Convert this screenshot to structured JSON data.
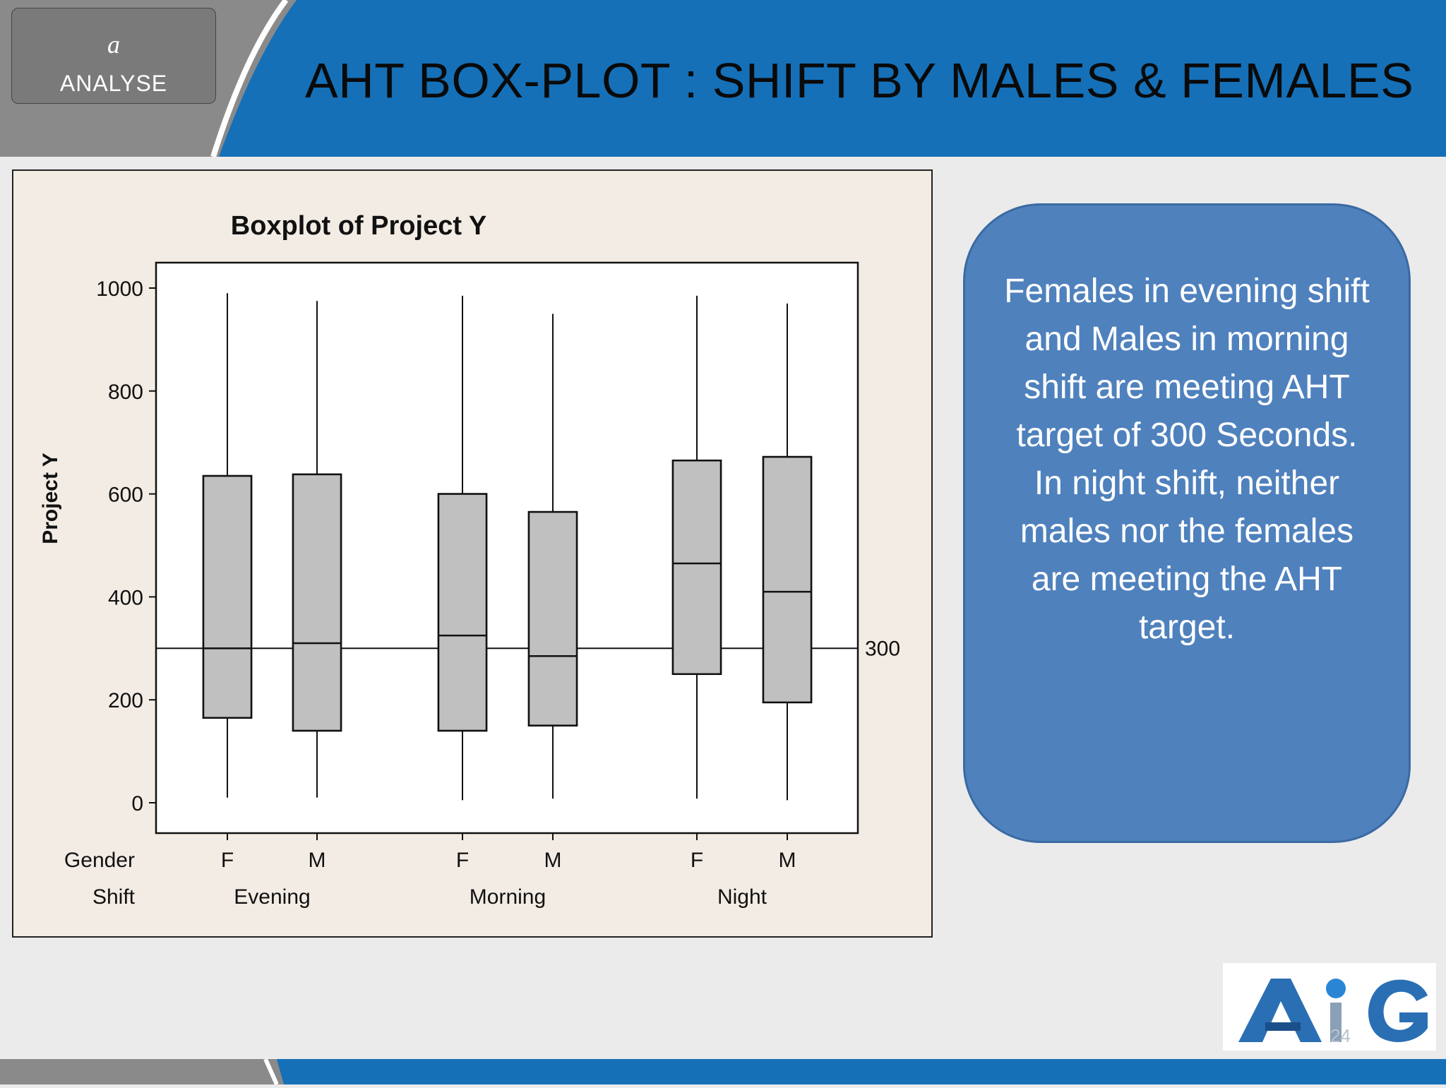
{
  "header": {
    "phase_letter": "a",
    "phase_label": "ANALYSE",
    "title": "AHT BOX-PLOT : SHIFT BY MALES & FEMALES"
  },
  "chart_data": {
    "type": "boxplot",
    "title": "Boxplot of Project Y",
    "ylabel": "Project Y",
    "ylim": [
      0,
      1000
    ],
    "yticks": [
      0,
      200,
      400,
      600,
      800,
      1000
    ],
    "grid": false,
    "reference_line": {
      "value": 300,
      "label": "300"
    },
    "row_labels": {
      "gender": "Gender",
      "shift": "Shift"
    },
    "groups": [
      {
        "shift": "Evening",
        "boxes": [
          {
            "gender": "F",
            "min": 10,
            "q1": 165,
            "median": 300,
            "q3": 635,
            "max": 990
          },
          {
            "gender": "M",
            "min": 10,
            "q1": 140,
            "median": 310,
            "q3": 638,
            "max": 975
          }
        ]
      },
      {
        "shift": "Morning",
        "boxes": [
          {
            "gender": "F",
            "min": 5,
            "q1": 140,
            "median": 325,
            "q3": 600,
            "max": 985
          },
          {
            "gender": "M",
            "min": 8,
            "q1": 150,
            "median": 285,
            "q3": 565,
            "max": 950
          }
        ]
      },
      {
        "shift": "Night",
        "boxes": [
          {
            "gender": "F",
            "min": 8,
            "q1": 250,
            "median": 465,
            "q3": 665,
            "max": 985
          },
          {
            "gender": "M",
            "min": 5,
            "q1": 195,
            "median": 410,
            "q3": 672,
            "max": 970
          }
        ]
      }
    ]
  },
  "callout": {
    "text": "Females in evening shift and Males in morning shift are meeting AHT target of 300 Seconds. In night shift, neither males nor the females are meeting the AHT target."
  },
  "logo": {
    "text": "AiG"
  },
  "footer": {
    "page_number": "24"
  },
  "colors": {
    "header_blue": "#1570b8",
    "header_gray": "#8a8a8a",
    "callout_blue": "#4f81bd",
    "box_fill": "#c0c0c0",
    "logo_blue": "#2a6fb4"
  }
}
